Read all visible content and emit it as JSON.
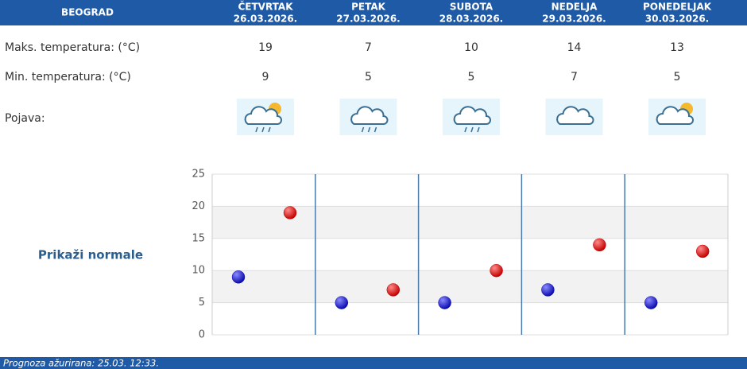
{
  "header": {
    "city": "BEOGRAD",
    "days": [
      {
        "name": "ČETVRTAK",
        "date": "26.03.2026."
      },
      {
        "name": "PETAK",
        "date": "27.03.2026."
      },
      {
        "name": "SUBOTA",
        "date": "28.03.2026."
      },
      {
        "name": "NEDELJA",
        "date": "29.03.2026."
      },
      {
        "name": "PONEDELJAK",
        "date": "30.03.2026."
      }
    ]
  },
  "rows": {
    "max_label": "Maks. temperatura: (°C)",
    "min_label": "Min. temperatura: (°C)",
    "icon_label": "Pojava:"
  },
  "link": "Prikaži normale",
  "chart_data": {
    "type": "scatter",
    "ylim": [
      0,
      25
    ],
    "yticks": [
      0,
      5,
      10,
      15,
      20,
      25
    ],
    "grid": true,
    "series": [
      {
        "color": "#0b0bb0",
        "values": [
          9,
          5,
          5,
          7,
          5
        ]
      },
      {
        "color": "#c40000",
        "values": [
          19,
          7,
          10,
          14,
          13
        ]
      }
    ]
  },
  "footer": "Prognoza ažurirana:  25.03. 12:33."
}
